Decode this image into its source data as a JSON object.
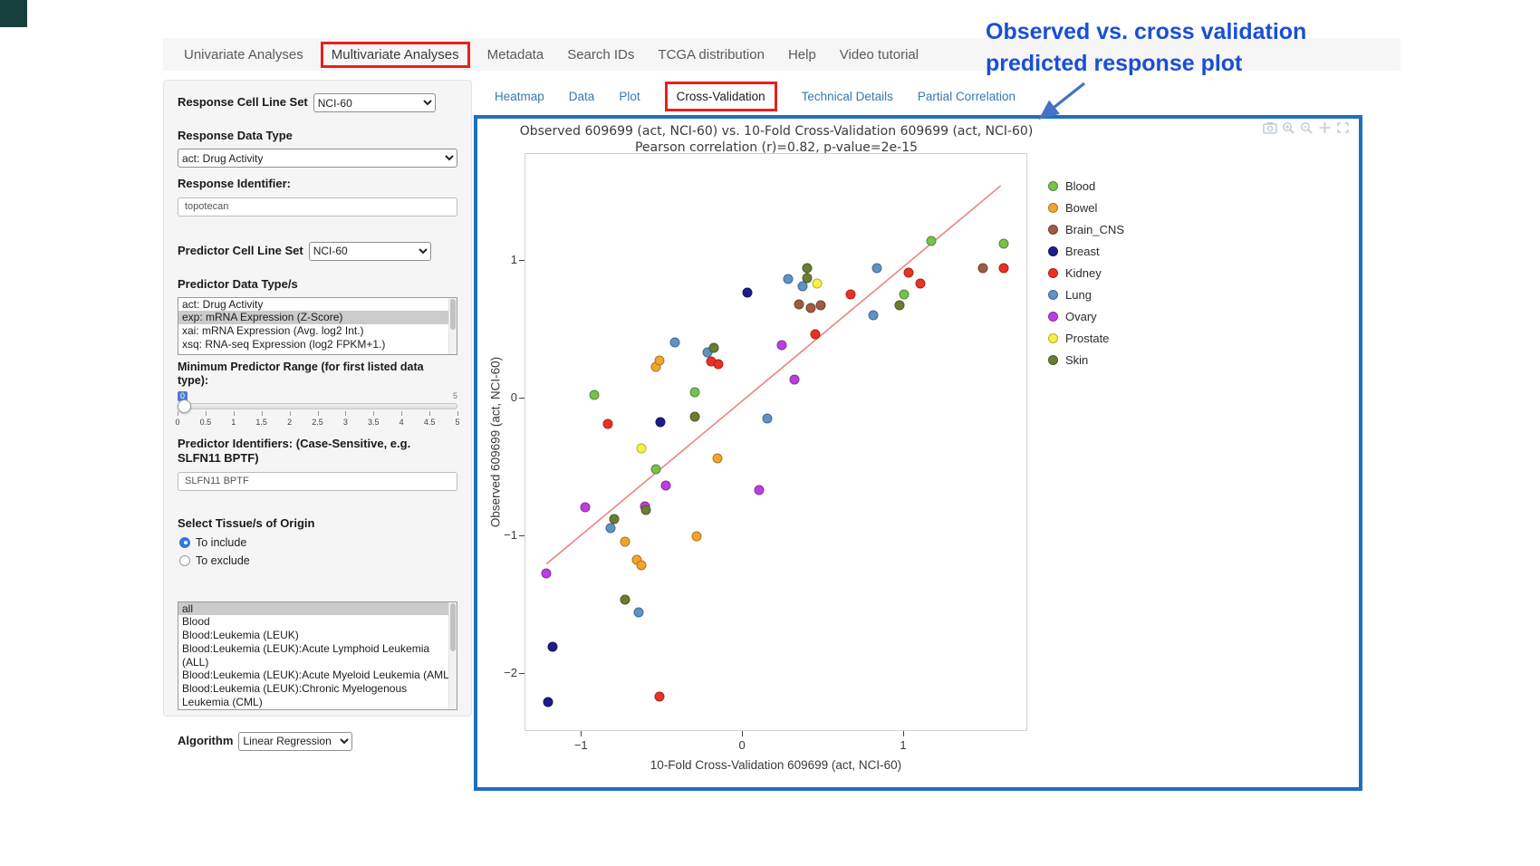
{
  "nav": {
    "tabs": [
      {
        "label": "Univariate Analyses"
      },
      {
        "label": "Multivariate Analyses",
        "boxed": true
      },
      {
        "label": "Metadata"
      },
      {
        "label": "Search IDs"
      },
      {
        "label": "TCGA distribution"
      },
      {
        "label": "Help"
      },
      {
        "label": "Video tutorial"
      }
    ]
  },
  "sidebar": {
    "response_cell_line_set": {
      "label": "Response Cell Line Set",
      "value": "NCI-60"
    },
    "response_data_type": {
      "label": "Response Data Type",
      "value": "act: Drug Activity"
    },
    "response_identifier": {
      "label": "Response Identifier:",
      "value": "topotecan"
    },
    "predictor_cell_line_set": {
      "label": "Predictor Cell Line Set",
      "value": "NCI-60"
    },
    "predictor_data_types": {
      "label": "Predictor Data Type/s",
      "options": [
        "act: Drug Activity",
        "exp: mRNA Expression (Z-Score)",
        "xai: mRNA Expression (Avg. log2 Int.)",
        "xsq: RNA-seq Expression (log2 FPKM+1.)"
      ],
      "selected_index": 1
    },
    "min_predictor_range": {
      "label": "Minimum Predictor Range (for first listed data type):",
      "value": "0",
      "max_label": "5",
      "ticks": [
        "0",
        "0.5",
        "1",
        "1.5",
        "2",
        "2.5",
        "3",
        "3.5",
        "4",
        "4.5",
        "5"
      ]
    },
    "predictor_identifiers": {
      "label": "Predictor Identifiers: (Case-Sensitive, e.g. SLFN11 BPTF)",
      "value": "SLFN11 BPTF"
    },
    "tissue_origin": {
      "label": "Select Tissue/s of Origin",
      "radios": [
        {
          "label": "To include",
          "checked": true
        },
        {
          "label": "To exclude",
          "checked": false
        }
      ],
      "options": [
        "all",
        "Blood",
        "Blood:Leukemia (LEUK)",
        "Blood:Leukemia (LEUK):Acute Lymphoid Leukemia (ALL)",
        "Blood:Leukemia (LEUK):Acute Myeloid Leukemia (AML)",
        "Blood:Leukemia (LEUK):Chronic Myelogenous Leukemia (CML)"
      ],
      "selected_index": 0
    },
    "algorithm": {
      "label": "Algorithm",
      "value": "Linear Regression"
    }
  },
  "main": {
    "tabs": [
      {
        "label": "Heatmap"
      },
      {
        "label": "Data"
      },
      {
        "label": "Plot"
      },
      {
        "label": "Cross-Validation",
        "active": true,
        "boxed": true
      },
      {
        "label": "Technical Details"
      },
      {
        "label": "Partial Correlation"
      }
    ]
  },
  "annotation": {
    "line1": "Observed vs. cross validation",
    "line2": "predicted response plot",
    "text_color": "#1A4FD6",
    "arrow_color": "#4472C4"
  },
  "panel": {
    "border_color": "#1F6FC0",
    "highlight_box_color": "#E8201D"
  },
  "chart_data": {
    "type": "scatter",
    "title": "Observed 609699 (act, NCI-60) vs. 10-Fold Cross-Validation 609699 (act, NCI-60)",
    "subtitle": "Pearson correlation (r)=0.82, p-value=2e-15",
    "xlabel": "10-Fold Cross-Validation 609699 (act, NCI-60)",
    "ylabel": "Observed 609699 (act, NCI-60)",
    "xlim": [
      -1.35,
      1.77
    ],
    "ylim": [
      -2.42,
      1.78
    ],
    "xticks": [
      -1,
      0,
      1
    ],
    "yticks": [
      -2,
      -1,
      0,
      1
    ],
    "grid": false,
    "legend_position": "right",
    "regression_line": {
      "x": [
        -1.22,
        1.6
      ],
      "y": [
        -1.2,
        1.55
      ],
      "color": "#F08080"
    },
    "series": [
      {
        "name": "Blood",
        "color": "#77C14C",
        "points": [
          [
            -0.92,
            0.03
          ],
          [
            -0.54,
            -0.51
          ],
          [
            -0.3,
            0.05
          ],
          [
            1.0,
            0.76
          ],
          [
            1.17,
            1.15
          ],
          [
            1.62,
            1.13
          ]
        ]
      },
      {
        "name": "Bowel",
        "color": "#F2A42C",
        "points": [
          [
            -0.73,
            -1.04
          ],
          [
            -0.66,
            -1.17
          ],
          [
            -0.63,
            -1.21
          ],
          [
            -0.54,
            0.23
          ],
          [
            -0.52,
            0.28
          ],
          [
            -0.29,
            -1.0
          ],
          [
            -0.16,
            -0.43
          ]
        ]
      },
      {
        "name": "Brain_CNS",
        "color": "#9E5C44",
        "points": [
          [
            0.35,
            0.69
          ],
          [
            0.42,
            0.66
          ],
          [
            0.48,
            0.68
          ],
          [
            1.49,
            0.95
          ]
        ]
      },
      {
        "name": "Breast",
        "color": "#1C1C8A",
        "points": [
          [
            -1.21,
            -2.2
          ],
          [
            -1.18,
            -1.8
          ],
          [
            -0.51,
            -0.17
          ],
          [
            0.03,
            0.77
          ]
        ]
      },
      {
        "name": "Kidney",
        "color": "#E93223",
        "points": [
          [
            -0.84,
            -0.18
          ],
          [
            -0.52,
            -2.16
          ],
          [
            -0.2,
            0.27
          ],
          [
            -0.15,
            0.25
          ],
          [
            0.45,
            0.47
          ],
          [
            0.67,
            0.76
          ],
          [
            1.03,
            0.92
          ],
          [
            1.1,
            0.84
          ],
          [
            1.62,
            0.95
          ]
        ]
      },
      {
        "name": "Lung",
        "color": "#5E93C8",
        "points": [
          [
            -0.82,
            -0.94
          ],
          [
            -0.65,
            -1.55
          ],
          [
            -0.42,
            0.41
          ],
          [
            -0.22,
            0.34
          ],
          [
            0.15,
            -0.14
          ],
          [
            0.28,
            0.87
          ],
          [
            0.37,
            0.82
          ],
          [
            0.81,
            0.61
          ],
          [
            0.83,
            0.95
          ]
        ]
      },
      {
        "name": "Ovary",
        "color": "#BB3FE0",
        "points": [
          [
            -1.22,
            -1.27
          ],
          [
            -0.98,
            -0.79
          ],
          [
            -0.61,
            -0.78
          ],
          [
            -0.48,
            -0.63
          ],
          [
            0.1,
            -0.66
          ],
          [
            0.24,
            0.39
          ],
          [
            0.32,
            0.14
          ]
        ]
      },
      {
        "name": "Prostate",
        "color": "#F7F344",
        "points": [
          [
            -0.63,
            -0.36
          ],
          [
            0.46,
            0.84
          ]
        ]
      },
      {
        "name": "Skin",
        "color": "#6A7D33",
        "points": [
          [
            -0.8,
            -0.87
          ],
          [
            -0.73,
            -1.46
          ],
          [
            -0.6,
            -0.81
          ],
          [
            -0.3,
            -0.13
          ],
          [
            -0.18,
            0.37
          ],
          [
            0.4,
            0.95
          ],
          [
            0.4,
            0.88
          ],
          [
            0.97,
            0.68
          ]
        ]
      }
    ]
  }
}
